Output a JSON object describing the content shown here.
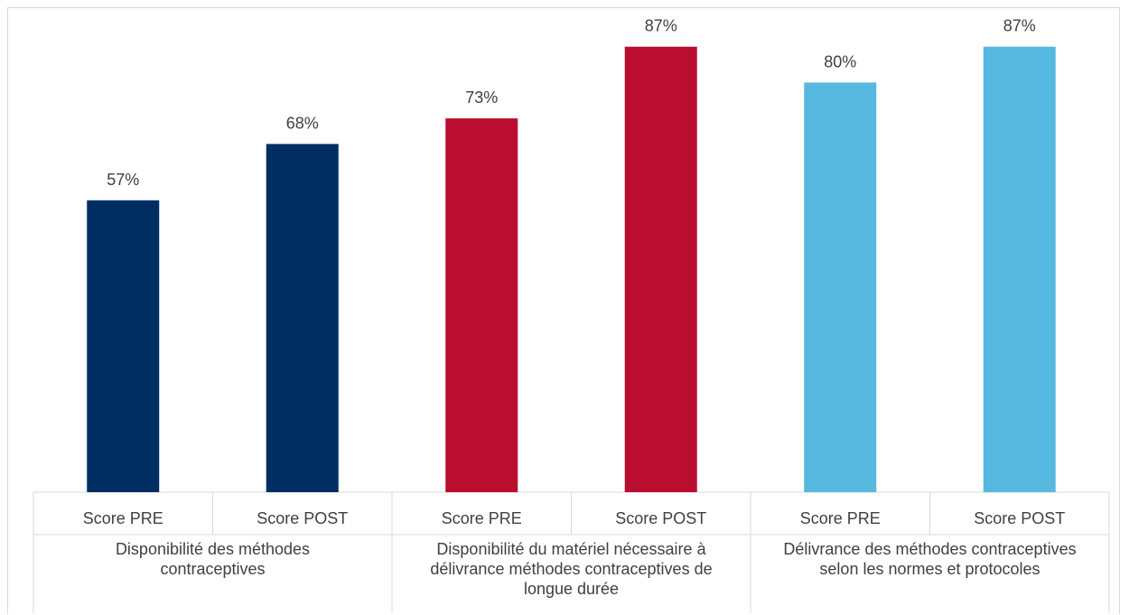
{
  "chart_data": {
    "type": "bar",
    "groups": [
      {
        "label": "Disponibilité des méthodes contraceptives",
        "label_lines": [
          "Disponibilité des méthodes",
          "contraceptives"
        ],
        "color": "#002D62",
        "categories": [
          "Score PRE",
          "Score POST"
        ],
        "values": [
          57,
          68
        ],
        "data_labels": [
          "57%",
          "68%"
        ]
      },
      {
        "label": "Disponibilité du matériel nécessaire à délivrance méthodes contraceptives de longue durée",
        "label_lines": [
          "Disponibilité du matériel nécessaire à",
          "délivrance méthodes contraceptives de",
          "longue durée"
        ],
        "color": "#B90E30",
        "categories": [
          "Score PRE",
          "Score POST"
        ],
        "values": [
          73,
          87
        ],
        "data_labels": [
          "73%",
          "87%"
        ]
      },
      {
        "label": "Délivrance des méthodes contraceptives selon les normes et protocoles",
        "label_lines": [
          "Délivrance des méthodes contraceptives",
          "selon les normes et protocoles"
        ],
        "color": "#56B8DE",
        "categories": [
          "Score PRE",
          "Score POST"
        ],
        "values": [
          80,
          87
        ],
        "data_labels": [
          "80%",
          "87%"
        ]
      }
    ],
    "ylim": [
      0,
      100
    ],
    "grid": false,
    "legend": "none"
  }
}
